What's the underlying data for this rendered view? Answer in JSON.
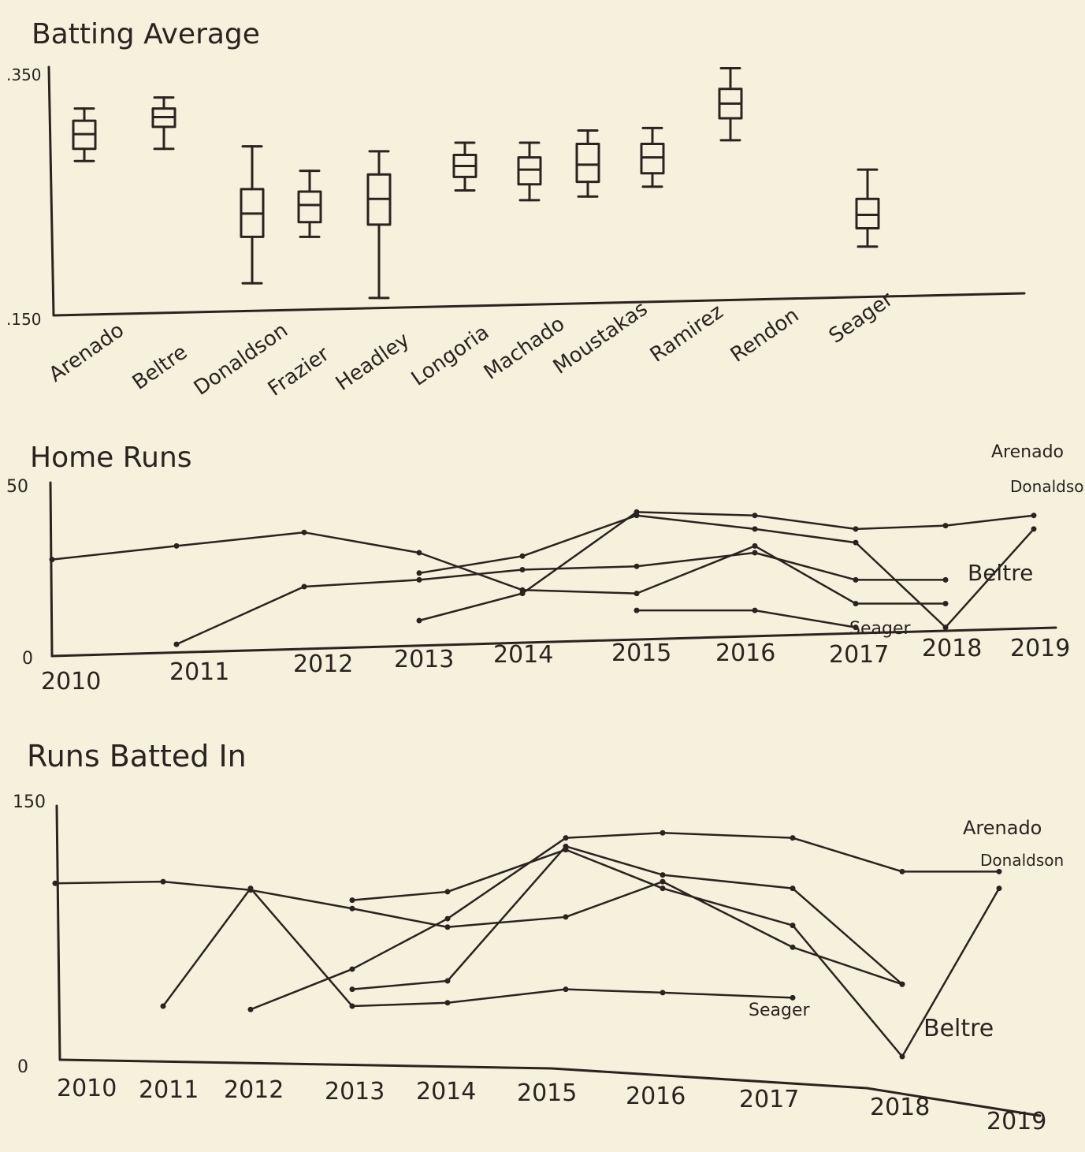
{
  "chart_data": [
    {
      "type": "box",
      "title": "Batting Average",
      "yticks": [
        ".350",
        ".150"
      ],
      "ylim": [
        0.15,
        0.35
      ],
      "categories": [
        "Arenado",
        "Beltre",
        "Donaldson",
        "Frazier",
        "Headley",
        "Longoria",
        "Machado",
        "Moustakas",
        "Ramirez",
        "Rendon",
        "Seager"
      ],
      "boxes": [
        {
          "category": "Arenado",
          "min": 0.275,
          "q1": 0.285,
          "median": 0.297,
          "q3": 0.308,
          "max": 0.318
        },
        {
          "category": "Beltre",
          "min": 0.285,
          "q1": 0.303,
          "median": 0.311,
          "q3": 0.318,
          "max": 0.327
        },
        {
          "category": "Donaldson",
          "min": 0.175,
          "q1": 0.213,
          "median": 0.232,
          "q3": 0.252,
          "max": 0.287
        },
        {
          "category": "Frazier",
          "min": 0.213,
          "q1": 0.225,
          "median": 0.239,
          "q3": 0.25,
          "max": 0.267
        },
        {
          "category": "Headley",
          "min": 0.163,
          "q1": 0.223,
          "median": 0.244,
          "q3": 0.264,
          "max": 0.283
        },
        {
          "category": "Longoria",
          "min": 0.251,
          "q1": 0.262,
          "median": 0.271,
          "q3": 0.28,
          "max": 0.29
        },
        {
          "category": "Machado",
          "min": 0.243,
          "q1": 0.256,
          "median": 0.268,
          "q3": 0.278,
          "max": 0.29
        },
        {
          "category": "Moustakas",
          "min": 0.246,
          "q1": 0.258,
          "median": 0.272,
          "q3": 0.289,
          "max": 0.3
        },
        {
          "category": "Ramirez",
          "min": 0.254,
          "q1": 0.265,
          "median": 0.278,
          "q3": 0.289,
          "max": 0.302
        },
        {
          "category": "Rendon",
          "min": 0.292,
          "q1": 0.31,
          "median": 0.322,
          "q3": 0.334,
          "max": 0.351
        },
        {
          "category": "Seager",
          "min": 0.205,
          "q1": 0.22,
          "median": 0.231,
          "q3": 0.244,
          "max": 0.268
        }
      ]
    },
    {
      "type": "line",
      "title": "Home Runs",
      "yticks": [
        "50",
        "0"
      ],
      "ylim": [
        0,
        50
      ],
      "x": [
        "2010",
        "2011",
        "2012",
        "2013",
        "2014",
        "2015",
        "2016",
        "2017",
        "2018",
        "2019"
      ],
      "series": [
        {
          "name": "Arenado",
          "values": [
            null,
            null,
            null,
            10,
            18,
            42,
            41,
            37,
            38,
            41
          ]
        },
        {
          "name": "Donaldson",
          "values": [
            null,
            null,
            null,
            24,
            29,
            41,
            37,
            33,
            8,
            37
          ]
        },
        {
          "name": "Beltre",
          "values": [
            28,
            32,
            36,
            30,
            19,
            18,
            32,
            15,
            15,
            null
          ]
        },
        {
          "name": "Seager",
          "values": [
            null,
            3,
            20,
            22,
            25,
            26,
            30,
            22,
            22,
            null
          ]
        },
        {
          "name": "Seager",
          "values": [
            null,
            null,
            null,
            null,
            null,
            13,
            13,
            8,
            null,
            null
          ]
        }
      ]
    },
    {
      "type": "line",
      "title": "Runs Batted In",
      "yticks": [
        "150",
        "0"
      ],
      "ylim": [
        0,
        150
      ],
      "x": [
        "2010",
        "2011",
        "2012",
        "2013",
        "2014",
        "2015",
        "2016",
        "2017",
        "2018",
        "2019"
      ],
      "series": [
        {
          "name": "Arenado",
          "values": [
            null,
            null,
            28,
            52,
            82,
            130,
            133,
            130,
            110,
            110
          ]
        },
        {
          "name": "Donaldson",
          "values": [
            null,
            null,
            null,
            93,
            98,
            123,
            100,
            78,
            0,
            100
          ]
        },
        {
          "name": "Beltre",
          "values": [
            103,
            104,
            99,
            88,
            77,
            83,
            104,
            65,
            43,
            null
          ]
        },
        {
          "name": "Seager",
          "values": [
            null,
            30,
            100,
            30,
            32,
            40,
            38,
            35,
            null,
            null
          ]
        },
        {
          "name": "Seager",
          "values": [
            null,
            null,
            null,
            40,
            45,
            125,
            108,
            100,
            43,
            null
          ]
        }
      ]
    }
  ],
  "labels": {
    "box_chart_x": [
      "Arenado",
      "Beltre",
      "Donaldson",
      "Frazier",
      "Headley",
      "Longoria",
      "Machado",
      "Moustakas",
      "Ramirez",
      "Rendon",
      "Seager"
    ],
    "hr_annotations": [
      "Arenado",
      "Donaldson",
      "Beltre",
      "Seager"
    ],
    "rbi_annotations": [
      "Arenado",
      "Donaldson",
      "Beltre",
      "Seager"
    ]
  },
  "colors": {
    "paper": "#f6f1dd",
    "ink": "#2a2420",
    "background": "#5a6f95"
  }
}
